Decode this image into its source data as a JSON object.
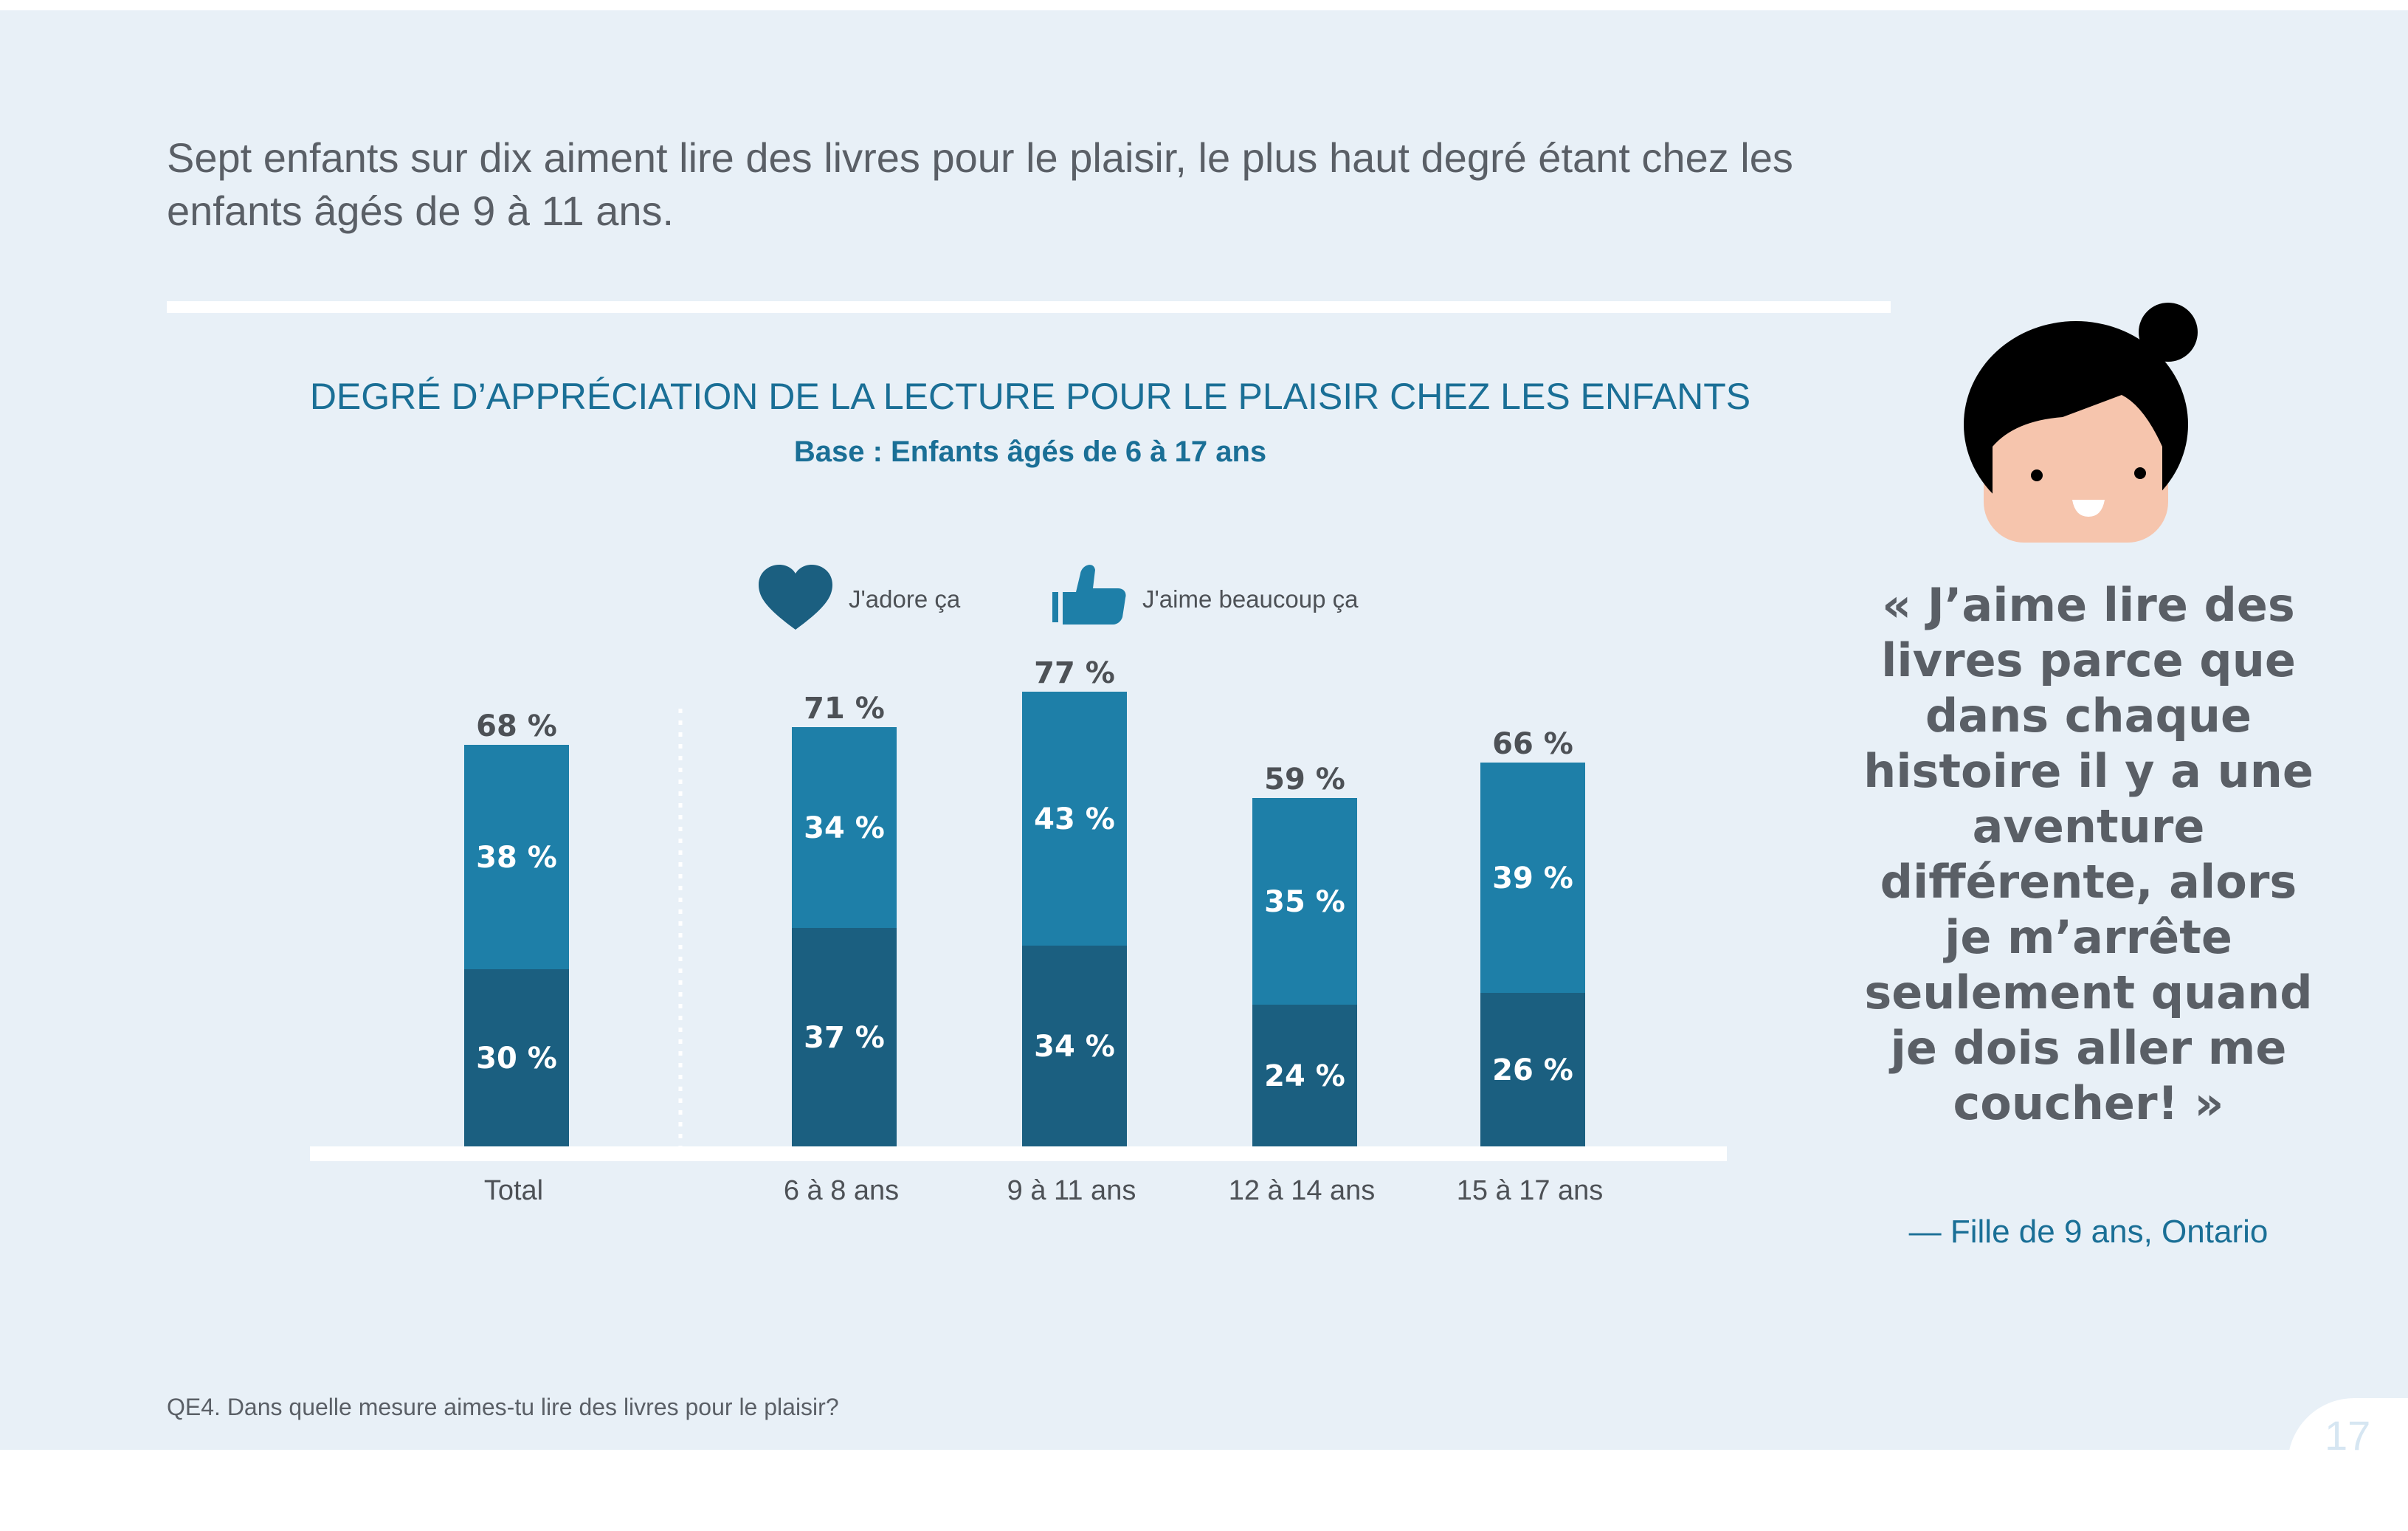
{
  "headline": "Sept enfants sur dix aiment lire des livres pour le plaisir, le plus haut degré étant chez les enfants âgés de 9 à 11 ans.",
  "chart_data": {
    "type": "bar",
    "stacked": true,
    "title": "DEGRÉ D’APPRÉCIATION DE LA LECTURE POUR LE PLAISIR CHEZ LES ENFANTS",
    "subtitle": "Base : Enfants âgés de 6 à 17 ans",
    "categories": [
      "Total",
      "6 à 8 ans",
      "9 à 11 ans",
      "12 à 14 ans",
      "15 à 17 ans"
    ],
    "series": [
      {
        "name": "J'adore ça",
        "icon": "heart-icon",
        "color": "#1b5f80",
        "values": [
          30,
          37,
          34,
          24,
          26
        ],
        "labels": [
          "30 %",
          "37 %",
          "34 %",
          "24 %",
          "26 %"
        ]
      },
      {
        "name": "J'aime beaucoup ça",
        "icon": "thumbs-up-icon",
        "color": "#1e7fa8",
        "values": [
          38,
          34,
          43,
          35,
          39
        ],
        "labels": [
          "38 %",
          "34 %",
          "43 %",
          "35 %",
          "39 %"
        ]
      }
    ],
    "totals": [
      68,
      71,
      77,
      59,
      66
    ],
    "total_labels": [
      "68 %",
      "71 %",
      "77 %",
      "59 %",
      "66 %"
    ],
    "ylim": [
      0,
      100
    ],
    "grid": false,
    "legend_position": "top-center",
    "separator_after": "Total"
  },
  "quote": {
    "text": "« J’aime lire des livres parce que dans chaque histoire il y a une aventure différente, alors je m’arrête seulement quand je dois aller me coucher! »",
    "attribution": "— Fille de 9 ans, Ontario"
  },
  "footnote": "QE4. Dans quelle mesure aimes-tu lire des livres pour le plaisir?",
  "page_number": "17",
  "colors": {
    "background": "#e8f0f7",
    "accent": "#1a6f96",
    "dark_bar": "#1b5f80",
    "light_bar": "#1e7fa8",
    "text": "#5a5f66"
  }
}
